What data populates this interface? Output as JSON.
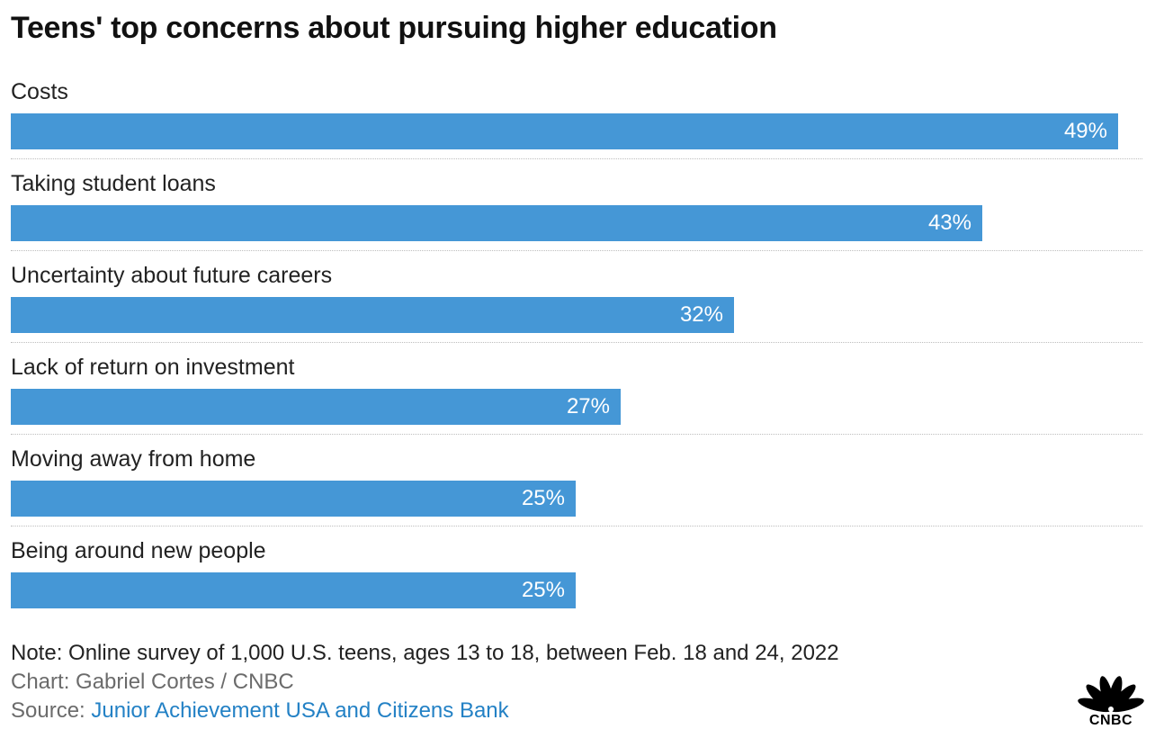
{
  "title": "Teens' top concerns about pursuing higher education",
  "chart_data": {
    "type": "bar",
    "orientation": "horizontal",
    "categories": [
      "Costs",
      "Taking student loans",
      "Uncertainty about future careers",
      "Lack of return on investment",
      "Moving away from home",
      "Being around new people"
    ],
    "values": [
      49,
      43,
      32,
      27,
      25,
      25
    ],
    "value_labels": [
      "49%",
      "43%",
      "32%",
      "27%",
      "25%",
      "25%"
    ],
    "unit": "%",
    "xlim": [
      0,
      50
    ],
    "title": "Teens' top concerns about pursuing higher education",
    "xlabel": "",
    "ylabel": "",
    "grid": false,
    "legend": "none"
  },
  "footer": {
    "note": "Note: Online survey of 1,000 U.S. teens, ages 13 to 18, between Feb. 18 and 24, 2022",
    "credit": "Chart: Gabriel Cortes / CNBC",
    "source_prefix": "Source: ",
    "source_link": "Junior Achievement USA and Citizens Bank"
  },
  "logo": {
    "text": "CNBC"
  },
  "colors": {
    "bar": "#4597d6",
    "link": "#2381c5",
    "bar_text": "#ffffff",
    "divider": "#bdbdbd"
  }
}
